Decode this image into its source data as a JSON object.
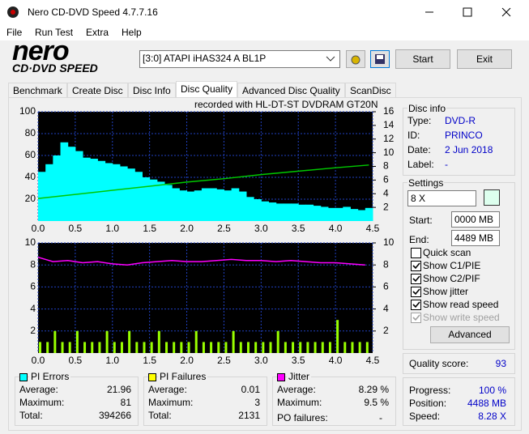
{
  "window": {
    "title": "Nero CD-DVD Speed 4.7.7.16",
    "menu": [
      "File",
      "Run Test",
      "Extra",
      "Help"
    ],
    "logo": {
      "brand": "nero",
      "product": "CD·DVD SPEED"
    },
    "drive": "[3:0]  ATAPI iHAS324   A BL1P",
    "start": "Start",
    "exit": "Exit",
    "tabs": [
      "Benchmark",
      "Create Disc",
      "Disc Info",
      "Disc Quality",
      "Advanced Disc Quality",
      "ScanDisc"
    ],
    "active_tab": 3
  },
  "chart_data": [
    {
      "type": "area",
      "title": "recorded with HL-DT-ST DVDRAM GT20N",
      "grid": true,
      "xlim": [
        0,
        4.5
      ],
      "xticks": [
        {
          "value": 0,
          "label": "0.0"
        },
        0.5,
        {
          "value": 1,
          "label": "1.0"
        },
        1.5,
        {
          "value": 2,
          "label": "2.0"
        },
        2.5,
        {
          "value": 3,
          "label": "3.0"
        },
        3.5,
        {
          "value": 4,
          "label": "4.0"
        },
        4.5
      ],
      "ylim": [
        0,
        100
      ],
      "yticks": [
        20,
        40,
        60,
        80,
        100
      ],
      "y2lim": [
        0,
        16
      ],
      "y2ticks": [
        2,
        4,
        6,
        8,
        10,
        12,
        14,
        16
      ],
      "series": [
        {
          "color": "#00ffff",
          "x": [
            0,
            0.1,
            0.2,
            0.3,
            0.4,
            0.5,
            0.6,
            0.7,
            0.8,
            0.9,
            1,
            1.1,
            1.2,
            1.3,
            1.4,
            1.5,
            1.6,
            1.7,
            1.8,
            1.9,
            2,
            2.1,
            2.2,
            2.3,
            2.4,
            2.5,
            2.6,
            2.7,
            2.8,
            2.9,
            3,
            3.1,
            3.2,
            3.3,
            3.4,
            3.5,
            3.6,
            3.7,
            3.8,
            3.9,
            4,
            4.1,
            4.2,
            4.3,
            4.4
          ],
          "values": [
            45,
            52,
            60,
            72,
            68,
            64,
            58,
            57,
            55,
            53,
            52,
            50,
            48,
            45,
            40,
            38,
            36,
            33,
            30,
            28,
            27,
            28,
            30,
            30,
            29,
            28,
            30,
            27,
            22,
            20,
            18,
            17,
            16,
            16,
            16,
            15,
            15,
            14,
            13,
            12,
            12,
            13,
            11,
            10,
            12
          ]
        },
        {
          "type": "line",
          "axis": "y2",
          "color": "#00c800",
          "x": [
            0,
            0.5,
            1,
            1.5,
            2,
            2.5,
            3,
            3.5,
            4,
            4.45
          ],
          "values": [
            3.3,
            3.9,
            4.5,
            5.1,
            5.7,
            6.2,
            6.8,
            7.3,
            7.8,
            8.2
          ]
        }
      ]
    },
    {
      "type": "bar",
      "grid": true,
      "xlim": [
        0,
        4.5
      ],
      "xticks": [
        {
          "value": 0,
          "label": "0.0"
        },
        0.5,
        {
          "value": 1,
          "label": "1.0"
        },
        1.5,
        {
          "value": 2,
          "label": "2.0"
        },
        2.5,
        {
          "value": 3,
          "label": "3.0"
        },
        3.5,
        {
          "value": 4,
          "label": "4.0"
        },
        4.5
      ],
      "ylim": [
        0,
        10
      ],
      "yticks": [
        2,
        4,
        6,
        8,
        10
      ],
      "y2lim": [
        0,
        10
      ],
      "y2ticks": [
        2,
        4,
        6,
        8,
        10
      ],
      "series": [
        {
          "color": "#99ff00",
          "x": [
            0,
            0.1,
            0.2,
            0.3,
            0.4,
            0.5,
            0.6,
            0.7,
            0.8,
            0.9,
            1,
            1.1,
            1.2,
            1.3,
            1.4,
            1.5,
            1.6,
            1.7,
            1.8,
            1.9,
            2,
            2.1,
            2.2,
            2.3,
            2.4,
            2.5,
            2.6,
            2.7,
            2.8,
            2.9,
            3,
            3.1,
            3.2,
            3.3,
            3.4,
            3.5,
            3.6,
            3.7,
            3.8,
            3.9,
            4,
            4.1,
            4.2,
            4.3,
            4.4
          ],
          "values": [
            1,
            1,
            2,
            1,
            1,
            2,
            1,
            1,
            1,
            2,
            1,
            1,
            2,
            1,
            1,
            1,
            2,
            1,
            1,
            1,
            1,
            2,
            1,
            1,
            1,
            1,
            2,
            1,
            1,
            1,
            1,
            1,
            2,
            1,
            1,
            1,
            1,
            1,
            1,
            1,
            3,
            1,
            1,
            1,
            1
          ]
        },
        {
          "type": "line",
          "color": "#ff00ff",
          "x": [
            0,
            0.2,
            0.4,
            0.6,
            0.8,
            1,
            1.2,
            1.4,
            1.6,
            1.8,
            2,
            2.2,
            2.4,
            2.6,
            2.8,
            3,
            3.2,
            3.4,
            3.6,
            3.8,
            4,
            4.2,
            4.4
          ],
          "values": [
            8.7,
            8.3,
            8.4,
            8.2,
            8.3,
            8.1,
            8,
            8.2,
            8.3,
            8.4,
            8.3,
            8.3,
            8.4,
            8.5,
            8.4,
            8.4,
            8.3,
            8.4,
            8.3,
            8.2,
            8.2,
            8.1,
            8
          ]
        }
      ]
    }
  ],
  "stats": [
    {
      "title": "PI Errors",
      "color": "#00ffff",
      "rows": [
        [
          "Average:",
          "21.96"
        ],
        [
          "Maximum:",
          "81"
        ],
        [
          "Total:",
          "394266"
        ]
      ]
    },
    {
      "title": "PI Failures",
      "color": "#ffff00",
      "rows": [
        [
          "Average:",
          "0.01"
        ],
        [
          "Maximum:",
          "3"
        ],
        [
          "Total:",
          "2131"
        ]
      ]
    },
    {
      "title": "Jitter",
      "color": "#ff00ff",
      "rows": [
        [
          "Average:",
          "8.29 %"
        ],
        [
          "Maximum:",
          "9.5 %"
        ]
      ],
      "extra": [
        "PO failures:",
        "-"
      ]
    }
  ],
  "disc_info": {
    "title": "Disc info",
    "rows": [
      [
        "Type:",
        "DVD-R"
      ],
      [
        "ID:",
        "PRINCO"
      ],
      [
        "Date:",
        "2 Jun 2018"
      ],
      [
        "Label:",
        "-"
      ]
    ]
  },
  "settings": {
    "title": "Settings",
    "speed": "8 X",
    "start_label": "Start:",
    "start": "0000 MB",
    "end_label": "End:",
    "end": "4489 MB",
    "checks": [
      {
        "label": "Quick scan",
        "checked": false
      },
      {
        "label": "Show C1/PIE",
        "checked": true
      },
      {
        "label": "Show C2/PIF",
        "checked": true
      },
      {
        "label": "Show jitter",
        "checked": true
      },
      {
        "label": "Show read speed",
        "checked": true
      },
      {
        "label": "Show write speed",
        "checked": true,
        "disabled": true
      }
    ],
    "advanced": "Advanced"
  },
  "quality": [
    "Quality score:",
    "93"
  ],
  "progress": [
    [
      "Progress:",
      "100 %"
    ],
    [
      "Position:",
      "4488 MB"
    ],
    [
      "Speed:",
      "8.28 X"
    ]
  ]
}
